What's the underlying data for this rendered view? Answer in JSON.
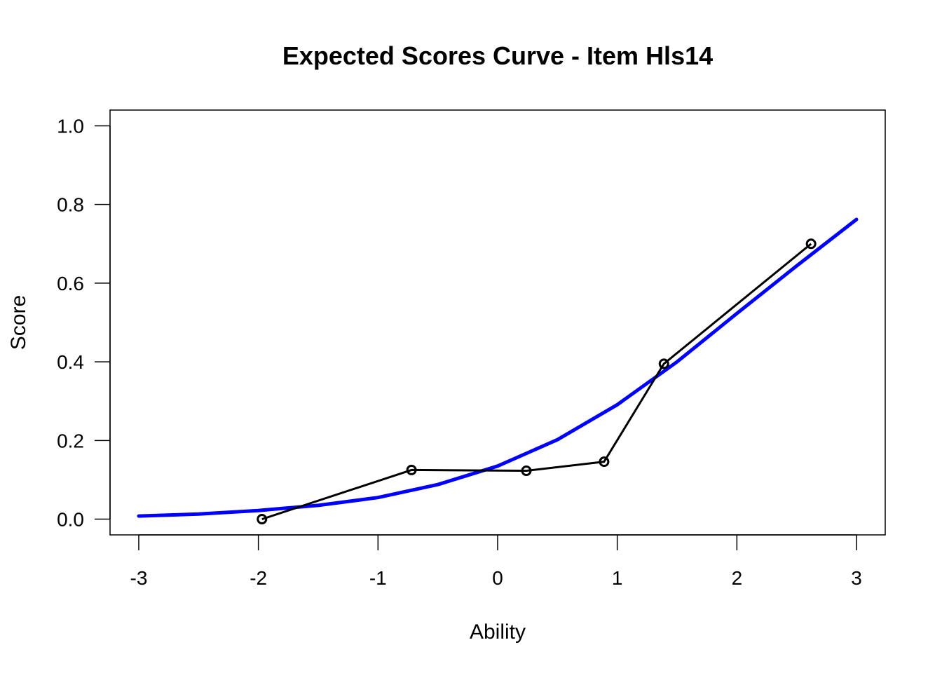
{
  "chart_data": {
    "type": "line",
    "title": "Expected Scores Curve - Item  Hls14",
    "xlabel": "Ability",
    "ylabel": "Score",
    "xlim": [
      -3.24,
      3.24
    ],
    "ylim": [
      -0.04,
      1.04
    ],
    "x_ticks": [
      "-3",
      "-2",
      "-1",
      "0",
      "1",
      "2",
      "3"
    ],
    "y_ticks": [
      "0.0",
      "0.2",
      "0.4",
      "0.6",
      "0.8",
      "1.0"
    ],
    "grid": false,
    "legend": "none",
    "series": [
      {
        "kind": "curve",
        "color": "#0000ff",
        "x": [
          -3.0,
          -2.5,
          -2.0,
          -1.5,
          -1.0,
          -0.5,
          0.0,
          0.5,
          1.0,
          1.5,
          2.0,
          2.5,
          3.0
        ],
        "y": [
          0.008,
          0.013,
          0.022,
          0.035,
          0.055,
          0.088,
          0.135,
          0.202,
          0.291,
          0.4,
          0.523,
          0.644,
          0.762
        ]
      },
      {
        "kind": "observed",
        "color": "#000000",
        "x": [
          -1.97,
          -0.72,
          0.24,
          0.89,
          1.39,
          2.62
        ],
        "y": [
          0.0,
          0.125,
          0.123,
          0.146,
          0.395,
          0.7
        ]
      }
    ]
  }
}
